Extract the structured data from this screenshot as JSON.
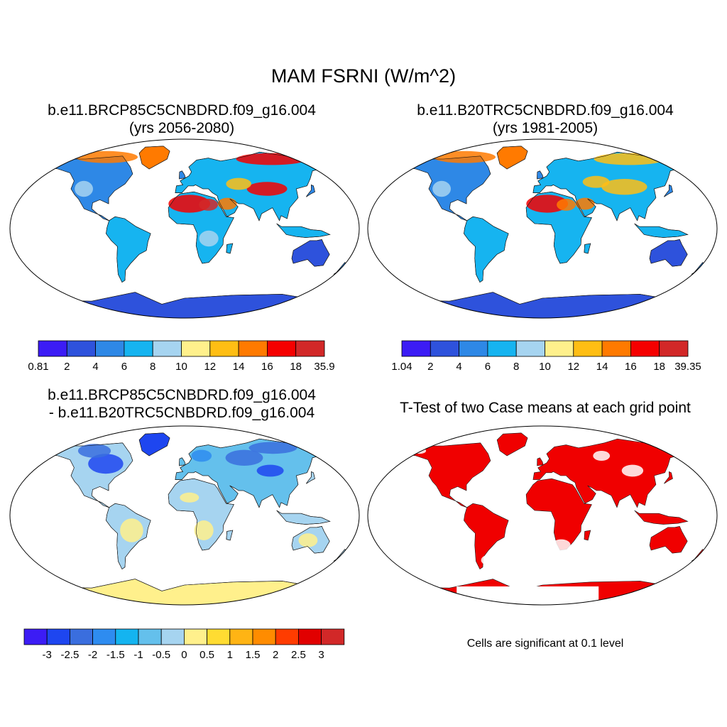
{
  "figure": {
    "title": "MAM FSRNI (W/m^2)",
    "note": "Cells are significant at 0.1 level"
  },
  "panels": [
    {
      "title_line1": "b.e11.BRCP85C5CNBDRD.f09_g16.004",
      "title_line2": "(yrs 2056-2080)",
      "colors": [
        "#3c1cf5",
        "#2e52dc",
        "#2e88e6",
        "#16b4f0",
        "#a6d4f0",
        "#fff08c",
        "#ffbe14",
        "#ff7a00",
        "#f50000",
        "#d22828"
      ],
      "labels": [
        "0.81",
        "2",
        "4",
        "6",
        "8",
        "10",
        "12",
        "14",
        "16",
        "18",
        "35.9"
      ]
    },
    {
      "title_line1": "b.e11.B20TRC5CNBDRD.f09_g16.004",
      "title_line2": "(yrs 1981-2005)",
      "colors": [
        "#3c1cf5",
        "#2e52dc",
        "#2e88e6",
        "#16b4f0",
        "#a6d4f0",
        "#fff08c",
        "#ffbe14",
        "#ff7a00",
        "#f50000",
        "#d22828"
      ],
      "labels": [
        "1.04",
        "2",
        "4",
        "6",
        "8",
        "10",
        "12",
        "14",
        "16",
        "18",
        "39.35"
      ]
    },
    {
      "title_line1": "b.e11.BRCP85C5CNBDRD.f09_g16.004",
      "title_line2": "- b.e11.B20TRC5CNBDRD.f09_g16.004",
      "colors": [
        "#3c1cf5",
        "#1e46f0",
        "#3a6ede",
        "#2e8cf0",
        "#14b4f0",
        "#64c0ec",
        "#a6d4f0",
        "#fff08c",
        "#ffdc32",
        "#ffb414",
        "#ff8c00",
        "#ff3c00",
        "#e10000",
        "#d22828"
      ],
      "labels": [
        "-3",
        "-2.5",
        "-2",
        "-1.5",
        "-1",
        "-0.5",
        "0",
        "0.5",
        "1",
        "1.5",
        "2",
        "2.5",
        "3"
      ]
    },
    {
      "title_line1": "T-Test of two Case means at each grid point",
      "significant_color": "#f00000"
    }
  ]
}
